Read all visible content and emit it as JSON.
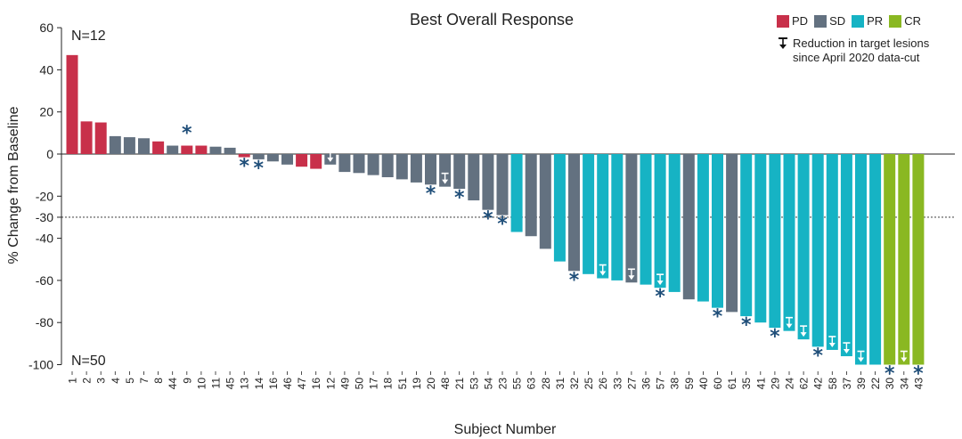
{
  "chart_data": {
    "type": "bar",
    "title": "Best Overall Response",
    "xlabel": "Subject Number",
    "ylabel": "% Change from Baseline",
    "ylim": [
      -100,
      60
    ],
    "yticks": [
      60,
      40,
      20,
      0,
      -20,
      -30,
      -40,
      -60,
      -80,
      -100
    ],
    "threshold": -30,
    "n_top": "N=12",
    "n_bottom": "N=50",
    "legend": [
      {
        "key": "PD",
        "label": "PD",
        "color": "#c8304a"
      },
      {
        "key": "SD",
        "label": "SD",
        "color": "#637180"
      },
      {
        "key": "PR",
        "label": "PR",
        "color": "#16b3c4"
      },
      {
        "key": "CR",
        "label": "CR",
        "color": "#8ab822"
      }
    ],
    "arrow_legend": [
      "Reduction in target lesions",
      "since April 2020 data-cut"
    ],
    "categories": [
      "1",
      "2",
      "3",
      "4",
      "5",
      "7",
      "8",
      "44",
      "9",
      "10",
      "11",
      "45",
      "13",
      "14",
      "16",
      "46",
      "47",
      "16",
      "12",
      "49",
      "50",
      "17",
      "18",
      "51",
      "19",
      "20",
      "48",
      "21",
      "53",
      "54",
      "23",
      "55",
      "63",
      "28",
      "31",
      "32",
      "25",
      "26",
      "33",
      "27",
      "36",
      "57",
      "38",
      "59",
      "40",
      "60",
      "61",
      "35",
      "41",
      "29",
      "24",
      "62",
      "42",
      "58",
      "37",
      "39",
      "22",
      "30",
      "34",
      "43"
    ],
    "values": [
      47,
      15.5,
      15,
      8.5,
      8,
      7.5,
      6,
      4,
      4,
      4,
      3.5,
      3,
      -1.5,
      -2.5,
      -3.5,
      -5,
      -6,
      -7,
      -5,
      -8.5,
      -9,
      -10,
      -11,
      -12,
      -13.5,
      -14.5,
      -15.5,
      -16.5,
      -22,
      -26.5,
      -29,
      -37,
      -39,
      -45,
      -51,
      -55.5,
      -57,
      -59,
      -60,
      -61,
      -62,
      -63.5,
      -65.5,
      -69,
      -70,
      -73,
      -75,
      -77,
      -80,
      -82.5,
      -84,
      -88,
      -91.5,
      -93,
      -96,
      -100,
      -100,
      -100,
      -100,
      -100
    ],
    "status": [
      "PD",
      "PD",
      "PD",
      "SD",
      "SD",
      "SD",
      "PD",
      "SD",
      "PD",
      "PD",
      "SD",
      "SD",
      "PD",
      "SD",
      "SD",
      "SD",
      "PD",
      "PD",
      "SD",
      "SD",
      "SD",
      "SD",
      "SD",
      "SD",
      "SD",
      "SD",
      "SD",
      "SD",
      "SD",
      "SD",
      "SD",
      "PR",
      "SD",
      "SD",
      "PR",
      "SD",
      "PR",
      "PR",
      "PR",
      "SD",
      "PR",
      "PR",
      "PR",
      "SD",
      "PR",
      "PR",
      "SD",
      "PR",
      "PR",
      "PR",
      "PR",
      "PR",
      "PR",
      "PR",
      "PR",
      "PR",
      "PR",
      "CR",
      "CR",
      "CR"
    ],
    "asterisk": [
      false,
      false,
      false,
      false,
      false,
      false,
      false,
      false,
      true,
      false,
      false,
      false,
      true,
      true,
      false,
      false,
      false,
      false,
      false,
      false,
      false,
      false,
      false,
      false,
      false,
      true,
      false,
      true,
      false,
      true,
      true,
      false,
      false,
      false,
      false,
      true,
      false,
      false,
      false,
      false,
      false,
      true,
      false,
      false,
      false,
      true,
      false,
      true,
      false,
      true,
      false,
      false,
      true,
      false,
      false,
      false,
      false,
      true,
      false,
      true
    ],
    "reduction_arrow": [
      false,
      false,
      false,
      false,
      false,
      false,
      false,
      false,
      false,
      false,
      false,
      false,
      false,
      false,
      false,
      false,
      false,
      false,
      true,
      false,
      false,
      false,
      false,
      false,
      false,
      false,
      true,
      false,
      false,
      false,
      false,
      false,
      false,
      false,
      false,
      false,
      false,
      true,
      false,
      true,
      false,
      true,
      false,
      false,
      false,
      false,
      false,
      false,
      false,
      false,
      true,
      true,
      false,
      true,
      true,
      true,
      false,
      false,
      true,
      false
    ]
  }
}
